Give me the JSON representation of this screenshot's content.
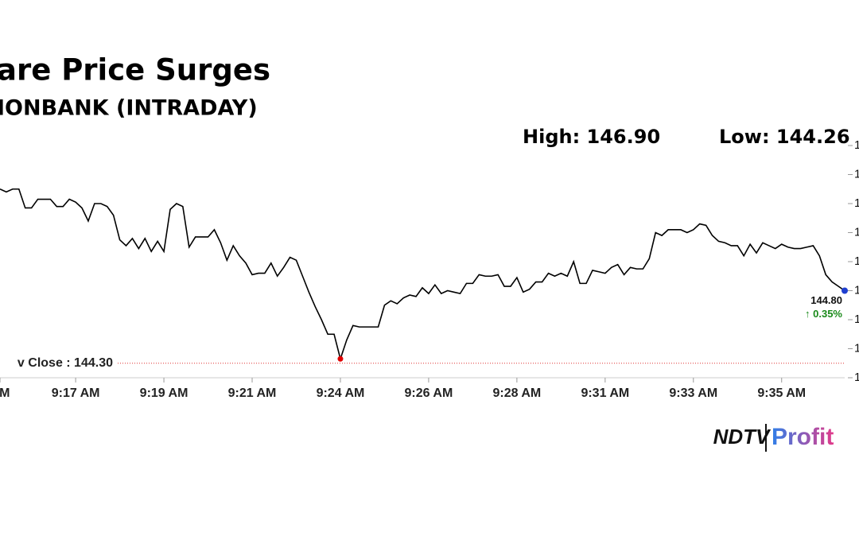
{
  "chart_data": {
    "type": "line",
    "title": "are Price Surges",
    "subtitle": "IONBANK (INTRADAY)",
    "high_label": "High: 146.90",
    "low_label": "Low: 144.26",
    "prev_close": 144.3,
    "prev_close_label": "v Close : 144.30",
    "last_price_label": "144.80",
    "change_label": "↑ 0.35%",
    "logo": {
      "left": "NDTV",
      "right": "Profit"
    },
    "categories": [
      "AM",
      null,
      null,
      null,
      null,
      null,
      null,
      null,
      null,
      null,
      null,
      null,
      "9:17 AM",
      null,
      null,
      null,
      null,
      null,
      null,
      null,
      null,
      null,
      null,
      null,
      null,
      null,
      "9:19 AM",
      null,
      null,
      null,
      null,
      null,
      null,
      null,
      null,
      null,
      null,
      null,
      null,
      null,
      "9:21 AM",
      null,
      null,
      null,
      null,
      null,
      null,
      null,
      null,
      null,
      null,
      null,
      null,
      null,
      "9:24 AM",
      null,
      null,
      null,
      null,
      null,
      null,
      null,
      null,
      null,
      null,
      null,
      null,
      null,
      "9:26 AM",
      null,
      null,
      null,
      null,
      null,
      null,
      null,
      null,
      null,
      null,
      null,
      null,
      null,
      "9:28 AM",
      null,
      null,
      null,
      null,
      null,
      null,
      null,
      null,
      null,
      null,
      null,
      null,
      null,
      "9:31 AM",
      null,
      null,
      null,
      null,
      null,
      null,
      null,
      null,
      null,
      null,
      null,
      null,
      null,
      "9:33 AM",
      null,
      null,
      null,
      null,
      null,
      null,
      null,
      null,
      null,
      null,
      null,
      null,
      null,
      "9:35 AM",
      null,
      null,
      null,
      null,
      null,
      null,
      null,
      null,
      null,
      null
    ],
    "series": [
      {
        "color": "#000000",
        "values": [
          145.5,
          145.48,
          145.5,
          145.5,
          145.37,
          145.37,
          145.43,
          145.43,
          145.43,
          145.38,
          145.38,
          145.43,
          145.41,
          145.37,
          145.28,
          145.4,
          145.4,
          145.38,
          145.32,
          145.15,
          145.11,
          145.16,
          145.09,
          145.16,
          145.07,
          145.14,
          145.07,
          145.36,
          145.4,
          145.38,
          145.1,
          145.17,
          145.17,
          145.17,
          145.22,
          145.13,
          145.01,
          145.11,
          145.04,
          144.99,
          144.91,
          144.92,
          144.92,
          144.99,
          144.9,
          144.96,
          145.03,
          145.01,
          144.9,
          144.79,
          144.69,
          144.6,
          144.5,
          144.5,
          144.33,
          144.46,
          144.56,
          144.55,
          144.55,
          144.55,
          144.55,
          144.7,
          144.73,
          144.71,
          144.75,
          144.77,
          144.76,
          144.82,
          144.78,
          144.84,
          144.78,
          144.8,
          144.79,
          144.78,
          144.85,
          144.85,
          144.91,
          144.9,
          144.9,
          144.91,
          144.83,
          144.83,
          144.89,
          144.79,
          144.81,
          144.86,
          144.86,
          144.92,
          144.9,
          144.92,
          144.9,
          145.0,
          144.85,
          144.85,
          144.94,
          144.93,
          144.92,
          144.96,
          144.98,
          144.91,
          144.96,
          144.95,
          144.95,
          145.02,
          145.2,
          145.18,
          145.22,
          145.22,
          145.22,
          145.2,
          145.22,
          145.26,
          145.25,
          145.18,
          145.14,
          145.13,
          145.11,
          145.11,
          145.04,
          145.12,
          145.06,
          145.13,
          145.11,
          145.09,
          145.12,
          145.1,
          145.09,
          145.09,
          145.1,
          145.11,
          145.04,
          144.91,
          144.86,
          144.83,
          144.8
        ]
      }
    ],
    "ylim": [
      144.2,
      145.8
    ],
    "yticks": [
      {
        "value": 144.2,
        "label": "1"
      },
      {
        "value": 144.4,
        "label": "1"
      },
      {
        "value": 144.6,
        "label": "1"
      },
      {
        "value": 144.8,
        "label": "1"
      },
      {
        "value": 145.0,
        "label": "1"
      },
      {
        "value": 145.2,
        "label": "1"
      },
      {
        "value": 145.4,
        "label": "1"
      },
      {
        "value": 145.6,
        "label": "1"
      },
      {
        "value": 145.8,
        "label": "1"
      }
    ],
    "low_marker_index": 54,
    "low_marker_color": "#e00000",
    "last_marker_color": "#1f3fd0",
    "prev_close_color": "#e03030",
    "change_color": "#1a8a1a"
  }
}
